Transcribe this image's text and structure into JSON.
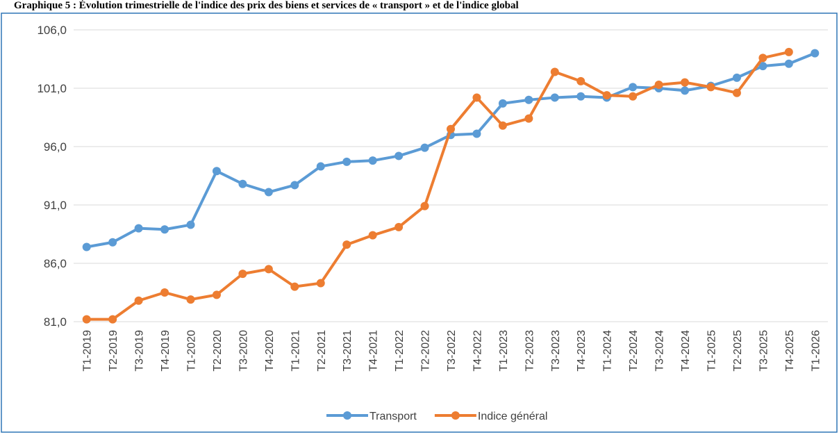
{
  "chart_data": {
    "type": "line",
    "title": "Graphique 5 : Évolution trimestrielle de l'indice des prix des biens et services de « transport » et de l'indice global",
    "categories": [
      "T1-2019",
      "T2-2019",
      "T3-2019",
      "T4-2019",
      "T1-2020",
      "T2-2020",
      "T3-2020",
      "T4-2020",
      "T1-2021",
      "T2-2021",
      "T3-2021",
      "T4-2021",
      "T1-2022",
      "T2-2022",
      "T3-2022",
      "T4-2022",
      "T1-2023",
      "T2-2023",
      "T3-2023",
      "T4-2023",
      "T1-2024",
      "T2-2024",
      "T3-2024",
      "T4-2024",
      "T1-2025",
      "T2-2025",
      "T3-2025",
      "T4-2025",
      "T1-2026"
    ],
    "series": [
      {
        "name": "Transport",
        "color": "#5b9bd5",
        "values": [
          87.4,
          87.8,
          89.0,
          88.9,
          89.3,
          93.9,
          92.8,
          92.1,
          92.7,
          94.3,
          94.7,
          94.8,
          95.2,
          95.9,
          97.0,
          97.1,
          99.7,
          100.0,
          100.2,
          100.3,
          100.2,
          101.1,
          101.0,
          100.8,
          101.2,
          101.9,
          102.9,
          103.1,
          104.0
        ]
      },
      {
        "name": "Indice général",
        "color": "#ed7d31",
        "values": [
          81.2,
          81.2,
          82.8,
          83.5,
          82.9,
          83.3,
          85.1,
          85.5,
          84.0,
          84.3,
          87.6,
          88.4,
          89.1,
          90.9,
          97.5,
          100.2,
          97.8,
          98.4,
          102.4,
          101.6,
          100.4,
          100.3,
          101.3,
          101.5,
          101.1,
          100.6,
          103.6,
          104.1,
          null
        ]
      }
    ],
    "ylim": [
      81,
      106
    ],
    "yticks": [
      {
        "value": 81,
        "label": "81,0"
      },
      {
        "value": 86,
        "label": "86,0"
      },
      {
        "value": 91,
        "label": "91,0"
      },
      {
        "value": 96,
        "label": "96,0"
      },
      {
        "value": 101,
        "label": "101,0"
      },
      {
        "value": 106,
        "label": "106,0"
      }
    ],
    "grid": true,
    "legend": "bottom"
  }
}
